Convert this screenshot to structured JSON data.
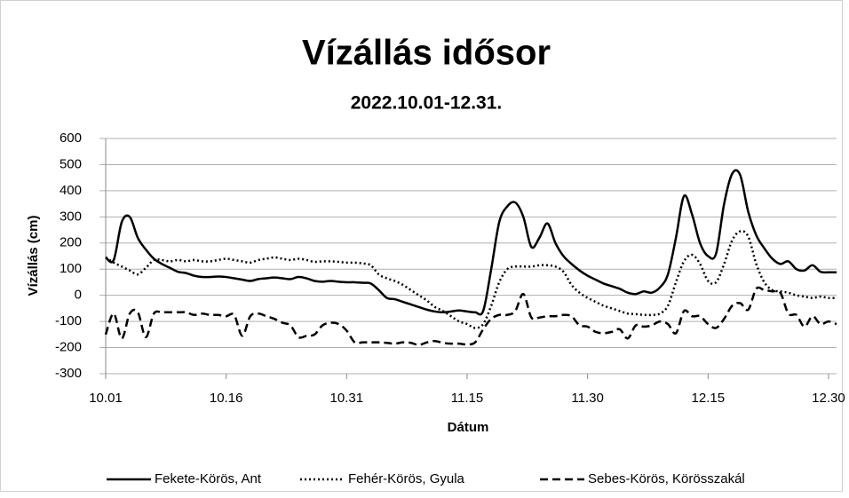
{
  "chart_data": {
    "type": "line",
    "title": "Vízállás idősor",
    "subtitle": "2022.10.01-12.31.",
    "x_label": "Dátum",
    "y_label": "Vízállás (cm)",
    "categories": [
      "10.01",
      null,
      null,
      null,
      null,
      null,
      null,
      null,
      null,
      null,
      null,
      null,
      null,
      null,
      null,
      "10.16",
      null,
      null,
      null,
      null,
      null,
      null,
      null,
      null,
      null,
      null,
      null,
      null,
      null,
      null,
      "10.31",
      null,
      null,
      null,
      null,
      null,
      null,
      null,
      null,
      null,
      null,
      null,
      null,
      null,
      null,
      "11.15",
      null,
      null,
      null,
      null,
      null,
      null,
      null,
      null,
      null,
      null,
      null,
      null,
      null,
      null,
      "11.30",
      null,
      null,
      null,
      null,
      null,
      null,
      null,
      null,
      null,
      null,
      null,
      null,
      null,
      null,
      "12.15",
      null,
      null,
      null,
      null,
      null,
      null,
      null,
      null,
      null,
      null,
      null,
      null,
      null,
      null,
      "12.30",
      null
    ],
    "ylim": [
      -300,
      600
    ],
    "yticks": [
      -300,
      -200,
      -100,
      0,
      100,
      200,
      300,
      400,
      500,
      600
    ],
    "grid": true,
    "legend": "bottom",
    "series": [
      {
        "name": "Fekete-Körös, Ant",
        "color": "#000000",
        "dash": "solid",
        "values": [
          145,
          135,
          280,
          300,
          220,
          175,
          140,
          120,
          105,
          90,
          85,
          75,
          70,
          70,
          72,
          70,
          65,
          60,
          55,
          62,
          65,
          68,
          65,
          62,
          70,
          65,
          55,
          52,
          55,
          52,
          50,
          50,
          48,
          45,
          20,
          -10,
          -15,
          -25,
          -35,
          -45,
          -55,
          -62,
          -65,
          -62,
          -58,
          -62,
          -65,
          -60,
          100,
          280,
          340,
          355,
          300,
          185,
          220,
          275,
          200,
          150,
          120,
          95,
          75,
          60,
          45,
          35,
          25,
          10,
          5,
          15,
          10,
          30,
          80,
          220,
          380,
          310,
          200,
          150,
          160,
          350,
          465,
          460,
          320,
          230,
          180,
          140,
          120,
          130,
          100,
          95,
          115,
          90,
          88,
          88
        ]
      },
      {
        "name": "Fehér-Körös, Gyula",
        "color": "#000000",
        "dash": "dotted",
        "values": [
          145,
          125,
          110,
          95,
          80,
          105,
          135,
          135,
          130,
          135,
          130,
          135,
          130,
          130,
          135,
          140,
          135,
          130,
          125,
          135,
          140,
          145,
          140,
          135,
          140,
          135,
          128,
          130,
          130,
          128,
          125,
          125,
          122,
          115,
          80,
          65,
          55,
          40,
          20,
          0,
          -20,
          -45,
          -60,
          -80,
          -100,
          -110,
          -125,
          -110,
          -40,
          50,
          100,
          110,
          110,
          110,
          115,
          115,
          110,
          90,
          40,
          10,
          -10,
          -25,
          -40,
          -50,
          -60,
          -70,
          -72,
          -75,
          -75,
          -70,
          -40,
          50,
          130,
          155,
          120,
          55,
          50,
          120,
          210,
          245,
          225,
          120,
          50,
          20,
          15,
          10,
          0,
          -5,
          -10,
          -5,
          -10,
          -10
        ]
      },
      {
        "name": "Sebes-Körös, Körösszakál",
        "color": "#000000",
        "dash": "dashed",
        "values": [
          -150,
          -70,
          -165,
          -70,
          -65,
          -160,
          -70,
          -65,
          -65,
          -65,
          -65,
          -75,
          -70,
          -75,
          -75,
          -80,
          -75,
          -155,
          -80,
          -70,
          -80,
          -90,
          -105,
          -115,
          -160,
          -155,
          -150,
          -115,
          -105,
          -110,
          -135,
          -180,
          -180,
          -180,
          -180,
          -182,
          -185,
          -180,
          -182,
          -190,
          -180,
          -175,
          -182,
          -185,
          -185,
          -188,
          -180,
          -130,
          -90,
          -75,
          -75,
          -60,
          5,
          -85,
          -85,
          -80,
          -80,
          -75,
          -80,
          -115,
          -120,
          -140,
          -145,
          -140,
          -130,
          -165,
          -115,
          -120,
          -115,
          -100,
          -110,
          -145,
          -60,
          -80,
          -80,
          -110,
          -125,
          -90,
          -40,
          -30,
          -55,
          25,
          20,
          15,
          10,
          -70,
          -75,
          -120,
          -80,
          -110,
          -100,
          -110
        ]
      }
    ]
  }
}
